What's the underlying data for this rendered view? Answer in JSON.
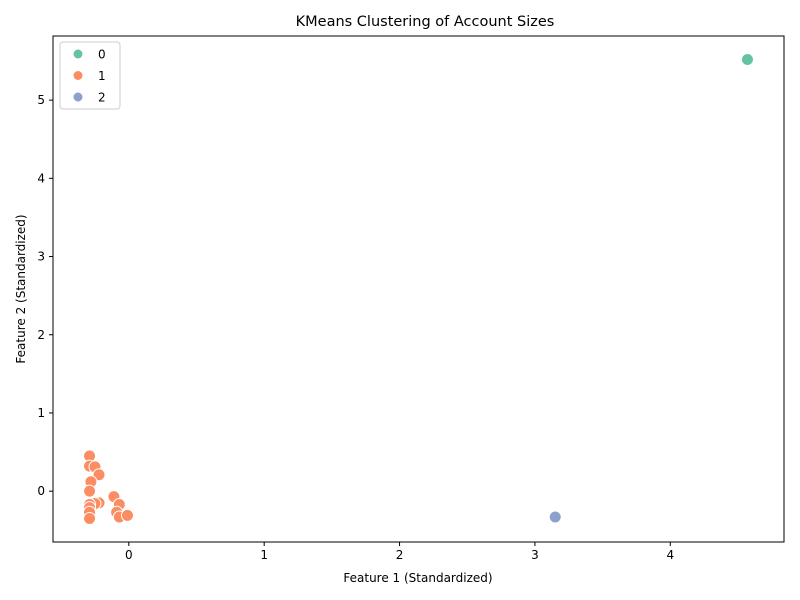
{
  "chart_data": {
    "type": "scatter",
    "title": "KMeans Clustering of Account Sizes",
    "xlabel": "Feature 1 (Standardized)",
    "ylabel": "Feature 2 (Standardized)",
    "xlim": [
      -0.56,
      4.84
    ],
    "ylim": [
      -0.65,
      5.82
    ],
    "xticks": [
      0,
      1,
      2,
      3,
      4
    ],
    "yticks": [
      0,
      1,
      2,
      3,
      4,
      5
    ],
    "grid": false,
    "legend_position": "top-left",
    "series": [
      {
        "name": "0",
        "color": "#66c2a5",
        "points": [
          [
            4.57,
            5.52
          ]
        ]
      },
      {
        "name": "1",
        "color": "#fc8d62",
        "points": [
          [
            -0.29,
            0.45
          ],
          [
            -0.29,
            0.32
          ],
          [
            -0.25,
            0.31
          ],
          [
            -0.22,
            0.21
          ],
          [
            -0.28,
            0.12
          ],
          [
            -0.29,
            0.0
          ],
          [
            -0.11,
            -0.07
          ],
          [
            -0.22,
            -0.15
          ],
          [
            -0.25,
            -0.16
          ],
          [
            -0.07,
            -0.17
          ],
          [
            -0.29,
            -0.17
          ],
          [
            -0.29,
            -0.21
          ],
          [
            -0.09,
            -0.27
          ],
          [
            -0.29,
            -0.27
          ],
          [
            -0.07,
            -0.33
          ],
          [
            -0.01,
            -0.31
          ],
          [
            -0.29,
            -0.35
          ]
        ]
      },
      {
        "name": "2",
        "color": "#8da0cb",
        "points": [
          [
            3.15,
            -0.33
          ]
        ]
      }
    ]
  }
}
